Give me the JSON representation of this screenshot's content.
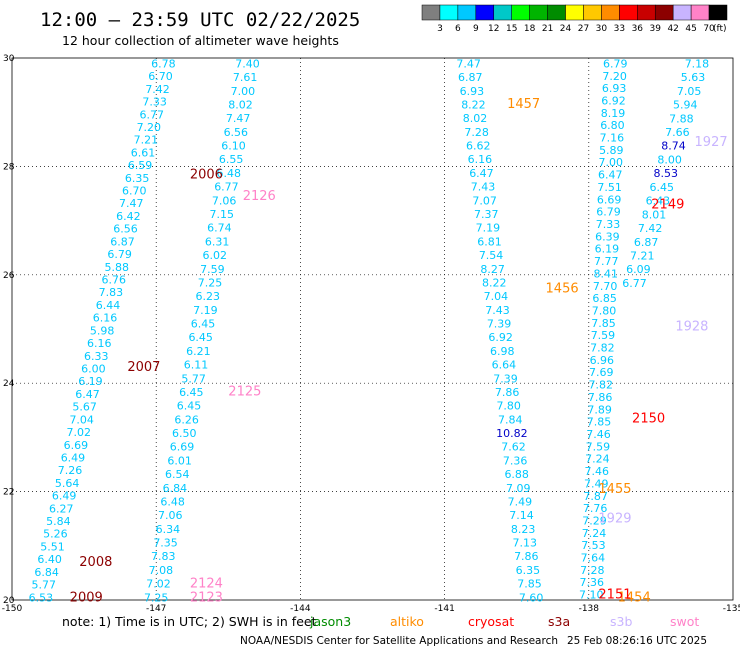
{
  "header": {
    "title": "12:00 – 23:59 UTC 02/22/2025",
    "subtitle": "12 hour collection of altimeter wave heights"
  },
  "colorbar": {
    "unit": "(ft)",
    "labels": [
      "3",
      "6",
      "9",
      "12",
      "15",
      "18",
      "21",
      "24",
      "27",
      "30",
      "33",
      "36",
      "39",
      "42",
      "45",
      "70"
    ],
    "colors": [
      "#7f7f7f",
      "#00ffff",
      "#00c8ff",
      "#0000ff",
      "#00c8c8",
      "#00ff00",
      "#00b400",
      "#008c00",
      "#ffff00",
      "#ffc800",
      "#ff8c00",
      "#ff0000",
      "#c80000",
      "#8c0000",
      "#c8b4ff",
      "#ff82c8",
      "#000000"
    ]
  },
  "footer": {
    "note": "note:  1) Time is in UTC; 2) SWH is in feet",
    "satellites": [
      {
        "name": "jason3",
        "color": "#008c00"
      },
      {
        "name": "altiko",
        "color": "#ff8c00"
      },
      {
        "name": "cryosat",
        "color": "#ff0000"
      },
      {
        "name": "s3a",
        "color": "#8c0000"
      },
      {
        "name": "s3b",
        "color": "#c8b4ff"
      },
      {
        "name": "swot",
        "color": "#ff82c8"
      }
    ],
    "credit": "NOAA/NESDIS Center for Satellite Applications and Research",
    "timestamp": "25 Feb 08:26:16 UTC 2025"
  },
  "chart_data": {
    "type": "scatter",
    "xlim": [
      -150,
      -135
    ],
    "ylim": [
      20,
      30
    ],
    "x_ticks": [
      "-150",
      "-147",
      "-144",
      "-141",
      "-138",
      "-135"
    ],
    "y_ticks": [
      "20",
      "22",
      "24",
      "26",
      "28",
      "30"
    ],
    "grid": true,
    "pass_labels": [
      {
        "label": "2006",
        "color": "#8c0000",
        "x": -146.3,
        "y": 27.85
      },
      {
        "label": "2126",
        "color": "#ff82c8",
        "x": -145.2,
        "y": 27.45
      },
      {
        "label": "2007",
        "color": "#8c0000",
        "x": -147.6,
        "y": 24.3
      },
      {
        "label": "2125",
        "color": "#ff82c8",
        "x": -145.5,
        "y": 23.85
      },
      {
        "label": "2008",
        "color": "#8c0000",
        "x": -148.6,
        "y": 20.7
      },
      {
        "label": "2124",
        "color": "#ff82c8",
        "x": -146.3,
        "y": 20.3
      },
      {
        "label": "2009",
        "color": "#8c0000",
        "x": -148.8,
        "y": 20.05
      },
      {
        "label": "2123",
        "color": "#ff82c8",
        "x": -146.3,
        "y": 20.05
      },
      {
        "label": "1457",
        "color": "#ff8c00",
        "x": -139.7,
        "y": 29.15
      },
      {
        "label": "1456",
        "color": "#ff8c00",
        "x": -138.9,
        "y": 25.75
      },
      {
        "label": "1455",
        "color": "#ff8c00",
        "x": -137.8,
        "y": 22.05
      },
      {
        "label": "1454",
        "color": "#ff8c00",
        "x": -137.4,
        "y": 20.05
      },
      {
        "label": "1927",
        "color": "#c8b4ff",
        "x": -135.8,
        "y": 28.45
      },
      {
        "label": "1928",
        "color": "#c8b4ff",
        "x": -136.2,
        "y": 25.05
      },
      {
        "label": "1929",
        "color": "#c8b4ff",
        "x": -137.8,
        "y": 21.5
      },
      {
        "label": "2149",
        "color": "#ff0000",
        "x": -136.7,
        "y": 27.3
      },
      {
        "label": "2150",
        "color": "#ff0000",
        "x": -137.1,
        "y": 23.35
      },
      {
        "label": "2151",
        "color": "#ff0000",
        "x": -137.8,
        "y": 20.1
      }
    ],
    "tracks": [
      {
        "name": "swot-2126",
        "color": "#00c8ff",
        "values": [
          "6.78",
          "6.70",
          "7.42",
          "7.33",
          "6.77",
          "7.20",
          "7.21",
          "6.61",
          "6.59",
          "6.35",
          "6.70",
          "7.47",
          "6.42",
          "6.56",
          "6.87",
          "6.79",
          "5.88",
          "6.76",
          "7.83",
          "6.44",
          "6.16",
          "5.98",
          "6.16",
          "6.33",
          "6.00",
          "6.19",
          "6.47",
          "5.67",
          "7.04",
          "7.02",
          "6.69",
          "6.49",
          "7.26",
          "5.64",
          "6.49",
          "6.27",
          "5.84",
          "5.26",
          "5.51",
          "6.40",
          "6.84",
          "5.77",
          "6.53"
        ],
        "x_start": -146.85,
        "y_start": 29.9,
        "x_end": -149.4,
        "y_end": 20.05
      },
      {
        "name": "swot-2125",
        "color": "#00c8ff",
        "values": [
          "7.40",
          "7.61",
          "7.00",
          "8.02",
          "7.47",
          "6.56",
          "6.10",
          "6.55",
          "6.48",
          "6.77",
          "7.06",
          "7.15",
          "6.74",
          "6.31",
          "6.02",
          "7.59",
          "7.25",
          "6.23",
          "7.19",
          "6.45",
          "6.45",
          "6.21",
          "6.11",
          "5.77",
          "6.45",
          "6.45",
          "6.26",
          "6.50",
          "6.69",
          "6.01",
          "6.54",
          "6.84",
          "6.48",
          "7.06",
          "6.34",
          "7.35",
          "7.83",
          "7.08",
          "7.02",
          "7.25"
        ],
        "x_start": -145.1,
        "y_start": 29.9,
        "x_end": -147.0,
        "y_end": 20.05
      },
      {
        "name": "altiko-1456",
        "color": "#00c8ff",
        "values": [
          "7.47",
          "6.87",
          "6.93",
          "8.22",
          "8.02",
          "7.28",
          "6.62",
          "6.16",
          "6.47",
          "7.43",
          "7.07",
          "7.37",
          "7.19",
          "6.81",
          "7.54",
          "8.27",
          "8.22",
          "7.04",
          "7.43",
          "7.39",
          "6.92",
          "6.98",
          "6.64",
          "7.39",
          "7.86",
          "7.80",
          "7.84",
          "10.82",
          "7.62",
          "7.36",
          "6.88",
          "7.09",
          "7.49",
          "7.14",
          "8.23",
          "7.13",
          "7.86",
          "6.35",
          "7.85",
          "7.60"
        ],
        "x_start": -140.5,
        "y_start": 29.9,
        "x_end": -139.2,
        "y_end": 20.05
      },
      {
        "name": "swot-1928",
        "color": "#00c8ff",
        "values": [
          "6.79",
          "7.20",
          "6.93",
          "6.92",
          "8.19",
          "6.80",
          "7.16",
          "5.89",
          "7.00",
          "6.47",
          "7.51",
          "6.69",
          "6.79",
          "7.33",
          "6.39",
          "6.19",
          "7.77",
          "8.41",
          "7.70",
          "6.85",
          "7.80",
          "7.85",
          "7.59",
          "7.82",
          "6.96",
          "7.69",
          "7.82",
          "7.86",
          "7.89",
          "7.85",
          "7.46",
          "7.59",
          "7.24",
          "7.46",
          "7.49",
          "7.87",
          "7.76",
          "7.29",
          "7.24",
          "7.53",
          "7.64",
          "7.28",
          "7.36",
          "7.10"
        ],
        "x_start": -137.45,
        "y_start": 29.9,
        "x_end": -137.95,
        "y_end": 20.1
      },
      {
        "name": "swot-1927",
        "color": "#00c8ff",
        "values": [
          "7.18",
          "5.63",
          "7.05",
          "5.94",
          "7.88",
          "7.66",
          "8.74",
          "8.00",
          "8.53",
          "6.45",
          "6.43",
          "8.01",
          "7.42",
          "6.87",
          "7.21",
          "6.09",
          "6.77"
        ],
        "x_start": -135.75,
        "y_start": 29.9,
        "x_end": -137.05,
        "y_end": 25.85
      }
    ]
  }
}
